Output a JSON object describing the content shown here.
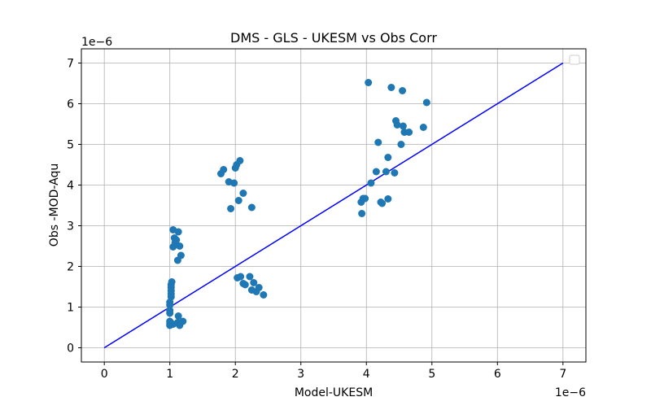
{
  "chart_data": {
    "type": "scatter",
    "title": "DMS - GLS - UKESM vs Obs Corr",
    "xlabel": "Model-UKESM",
    "ylabel": "Obs -MOD-Aqu",
    "x_offset_label": "1e−6",
    "y_offset_label": "1e−6",
    "xlim": [
      -0.35,
      7.35
    ],
    "ylim": [
      -0.35,
      7.35
    ],
    "x_ticks": [
      0,
      1,
      2,
      3,
      4,
      5,
      6,
      7
    ],
    "y_ticks": [
      0,
      1,
      2,
      3,
      4,
      5,
      6,
      7
    ],
    "x_tick_labels": [
      "0",
      "1",
      "2",
      "3",
      "4",
      "5",
      "6",
      "7"
    ],
    "y_tick_labels": [
      "0",
      "1",
      "2",
      "3",
      "4",
      "5",
      "6",
      "7"
    ],
    "grid": true,
    "legend": "top-right (empty)",
    "colors": {
      "points": "#1f77b4",
      "line": "#0000ff",
      "grid": "#b0b0b0"
    },
    "reference_line": {
      "x": [
        0,
        7
      ],
      "y": [
        0,
        7
      ]
    },
    "points": [
      [
        1.0,
        0.55
      ],
      [
        1.0,
        0.6
      ],
      [
        1.0,
        0.65
      ],
      [
        1.0,
        0.85
      ],
      [
        1.0,
        0.92
      ],
      [
        1.0,
        1.05
      ],
      [
        1.0,
        1.12
      ],
      [
        1.02,
        1.25
      ],
      [
        1.02,
        1.32
      ],
      [
        1.02,
        1.4
      ],
      [
        1.02,
        1.48
      ],
      [
        1.02,
        1.55
      ],
      [
        1.03,
        1.62
      ],
      [
        1.05,
        0.58
      ],
      [
        1.05,
        2.48
      ],
      [
        1.05,
        2.9
      ],
      [
        1.07,
        2.7
      ],
      [
        1.08,
        2.58
      ],
      [
        1.1,
        2.65
      ],
      [
        1.12,
        2.15
      ],
      [
        1.12,
        0.62
      ],
      [
        1.13,
        2.85
      ],
      [
        1.13,
        0.78
      ],
      [
        1.15,
        2.5
      ],
      [
        1.15,
        0.55
      ],
      [
        1.17,
        2.27
      ],
      [
        1.2,
        0.65
      ],
      [
        1.78,
        4.28
      ],
      [
        1.82,
        4.38
      ],
      [
        1.9,
        4.08
      ],
      [
        1.93,
        3.42
      ],
      [
        1.98,
        4.05
      ],
      [
        2.0,
        4.42
      ],
      [
        2.02,
        4.5
      ],
      [
        2.05,
        3.62
      ],
      [
        2.07,
        4.6
      ],
      [
        2.03,
        1.72
      ],
      [
        2.08,
        1.75
      ],
      [
        2.12,
        3.8
      ],
      [
        2.12,
        1.58
      ],
      [
        2.15,
        1.55
      ],
      [
        2.22,
        1.75
      ],
      [
        2.25,
        3.45
      ],
      [
        2.25,
        1.42
      ],
      [
        2.28,
        1.6
      ],
      [
        2.32,
        1.38
      ],
      [
        2.36,
        1.48
      ],
      [
        2.43,
        1.3
      ],
      [
        3.92,
        3.58
      ],
      [
        3.93,
        3.3
      ],
      [
        3.95,
        3.67
      ],
      [
        3.98,
        3.67
      ],
      [
        4.03,
        6.52
      ],
      [
        4.07,
        4.05
      ],
      [
        4.15,
        4.33
      ],
      [
        4.18,
        5.05
      ],
      [
        4.22,
        3.58
      ],
      [
        4.24,
        3.55
      ],
      [
        4.3,
        4.33
      ],
      [
        4.33,
        4.68
      ],
      [
        4.33,
        3.66
      ],
      [
        4.38,
        6.4
      ],
      [
        4.43,
        4.3
      ],
      [
        4.45,
        5.58
      ],
      [
        4.47,
        5.48
      ],
      [
        4.53,
        5.0
      ],
      [
        4.55,
        6.32
      ],
      [
        4.56,
        5.45
      ],
      [
        4.58,
        5.3
      ],
      [
        4.65,
        5.3
      ],
      [
        4.87,
        5.42
      ],
      [
        4.92,
        6.03
      ]
    ]
  }
}
